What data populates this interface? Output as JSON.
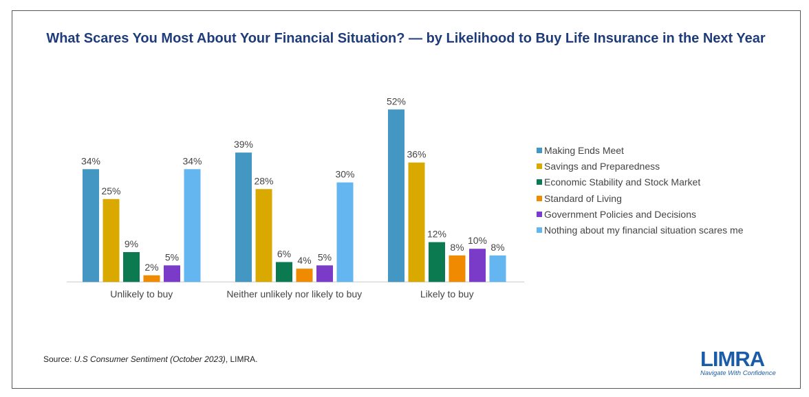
{
  "title": "What Scares You Most About Your Financial Situation? — by Likelihood to Buy Life Insurance in the Next Year",
  "source": {
    "prefix": "Source: ",
    "italic": "U.S Consumer Sentiment (October 2023)",
    "suffix": ", LIMRA."
  },
  "logo": {
    "word": "LIMRA",
    "tagline": "Navigate With Confidence"
  },
  "chart_data": {
    "type": "bar",
    "title": "What Scares You Most About Your Financial Situation? — by Likelihood to Buy Life Insurance in the Next Year",
    "categories": [
      "Unlikely to buy",
      "Neither unlikely nor likely to buy",
      "Likely to buy"
    ],
    "ylim": [
      0,
      55
    ],
    "grid": false,
    "legend_position": "right",
    "unit": "%",
    "series": [
      {
        "name": "Making Ends Meet",
        "color": "#4497C2",
        "values": [
          34,
          39,
          52
        ]
      },
      {
        "name": "Savings and Preparedness",
        "color": "#D9A900",
        "values": [
          25,
          28,
          36
        ]
      },
      {
        "name": "Economic Stability and Stock Market",
        "color": "#0B7A50",
        "values": [
          9,
          6,
          12
        ]
      },
      {
        "name": "Standard of Living",
        "color": "#F08A00",
        "values": [
          2,
          4,
          8
        ]
      },
      {
        "name": "Government Policies and Decisions",
        "color": "#7A3CC8",
        "values": [
          5,
          5,
          10
        ]
      },
      {
        "name": "Nothing about my financial situation scares me",
        "color": "#63B6F0",
        "values": [
          34,
          30,
          8
        ]
      }
    ]
  }
}
